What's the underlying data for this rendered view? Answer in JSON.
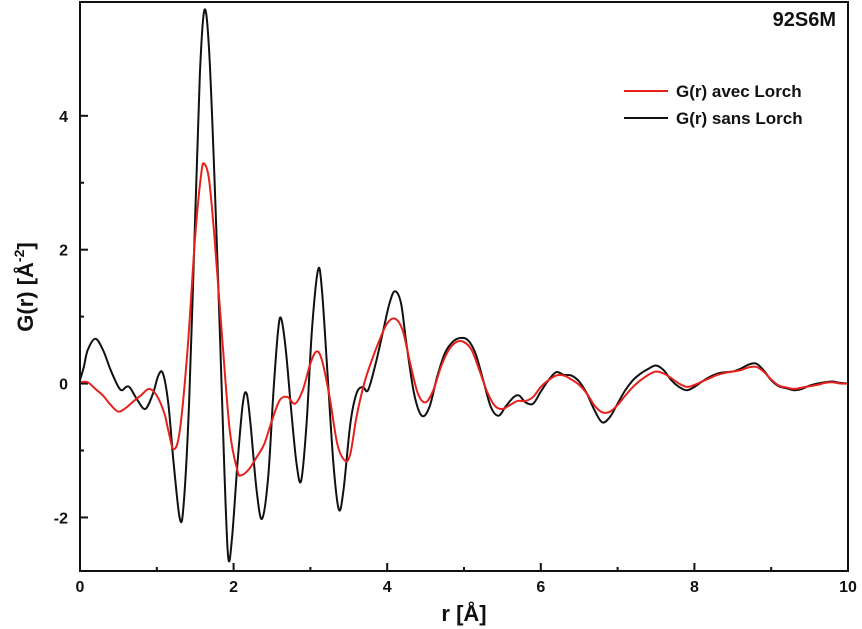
{
  "chart_data": {
    "type": "line",
    "title": "92S6M",
    "xlabel": "r [Å]",
    "ylabel": {
      "main": "G(r) [Å",
      "sup": "-2",
      "end": "]"
    },
    "xlim": [
      0,
      10
    ],
    "ylim": [
      -2.8,
      5.7
    ],
    "xticks": [
      0,
      2,
      4,
      6,
      8,
      10
    ],
    "yticks": [
      -2,
      0,
      2,
      4
    ],
    "grid": false,
    "legend": "top-right",
    "series": [
      {
        "name": "G(r) avec Lorch",
        "color": "#e8201c",
        "points": [
          [
            0,
            0.02
          ],
          [
            0.1,
            0.02
          ],
          [
            0.2,
            -0.08
          ],
          [
            0.3,
            -0.18
          ],
          [
            0.4,
            -0.32
          ],
          [
            0.5,
            -0.42
          ],
          [
            0.6,
            -0.36
          ],
          [
            0.7,
            -0.26
          ],
          [
            0.8,
            -0.17
          ],
          [
            0.9,
            -0.08
          ],
          [
            1.0,
            -0.18
          ],
          [
            1.1,
            -0.45
          ],
          [
            1.15,
            -0.7
          ],
          [
            1.22,
            -0.98
          ],
          [
            1.3,
            -0.7
          ],
          [
            1.4,
            0.5
          ],
          [
            1.5,
            2.2
          ],
          [
            1.58,
            3.15
          ],
          [
            1.62,
            3.28
          ],
          [
            1.68,
            3.05
          ],
          [
            1.75,
            2.2
          ],
          [
            1.85,
            0.7
          ],
          [
            1.95,
            -0.7
          ],
          [
            2.05,
            -1.3
          ],
          [
            2.1,
            -1.37
          ],
          [
            2.2,
            -1.28
          ],
          [
            2.3,
            -1.1
          ],
          [
            2.4,
            -0.9
          ],
          [
            2.5,
            -0.55
          ],
          [
            2.6,
            -0.25
          ],
          [
            2.7,
            -0.2
          ],
          [
            2.8,
            -0.3
          ],
          [
            2.9,
            -0.1
          ],
          [
            3.0,
            0.3
          ],
          [
            3.08,
            0.48
          ],
          [
            3.15,
            0.35
          ],
          [
            3.25,
            -0.2
          ],
          [
            3.35,
            -0.9
          ],
          [
            3.45,
            -1.15
          ],
          [
            3.52,
            -1.05
          ],
          [
            3.6,
            -0.5
          ],
          [
            3.7,
            0.0
          ],
          [
            3.8,
            0.35
          ],
          [
            3.9,
            0.65
          ],
          [
            4.0,
            0.9
          ],
          [
            4.1,
            0.97
          ],
          [
            4.2,
            0.8
          ],
          [
            4.3,
            0.3
          ],
          [
            4.4,
            -0.15
          ],
          [
            4.5,
            -0.28
          ],
          [
            4.6,
            -0.1
          ],
          [
            4.7,
            0.25
          ],
          [
            4.8,
            0.5
          ],
          [
            4.9,
            0.62
          ],
          [
            5.0,
            0.62
          ],
          [
            5.1,
            0.5
          ],
          [
            5.2,
            0.2
          ],
          [
            5.3,
            -0.12
          ],
          [
            5.4,
            -0.33
          ],
          [
            5.5,
            -0.38
          ],
          [
            5.6,
            -0.32
          ],
          [
            5.7,
            -0.26
          ],
          [
            5.8,
            -0.26
          ],
          [
            5.9,
            -0.2
          ],
          [
            6.0,
            -0.05
          ],
          [
            6.1,
            0.05
          ],
          [
            6.2,
            0.12
          ],
          [
            6.3,
            0.12
          ],
          [
            6.4,
            0.06
          ],
          [
            6.5,
            -0.02
          ],
          [
            6.6,
            -0.15
          ],
          [
            6.7,
            -0.33
          ],
          [
            6.8,
            -0.43
          ],
          [
            6.9,
            -0.42
          ],
          [
            7.0,
            -0.32
          ],
          [
            7.1,
            -0.18
          ],
          [
            7.2,
            -0.05
          ],
          [
            7.3,
            0.05
          ],
          [
            7.4,
            0.13
          ],
          [
            7.5,
            0.18
          ],
          [
            7.6,
            0.15
          ],
          [
            7.7,
            0.08
          ],
          [
            7.8,
            0.0
          ],
          [
            7.9,
            -0.05
          ],
          [
            8.0,
            -0.02
          ],
          [
            8.1,
            0.03
          ],
          [
            8.2,
            0.08
          ],
          [
            8.3,
            0.13
          ],
          [
            8.4,
            0.16
          ],
          [
            8.5,
            0.18
          ],
          [
            8.6,
            0.2
          ],
          [
            8.7,
            0.24
          ],
          [
            8.8,
            0.25
          ],
          [
            8.9,
            0.18
          ],
          [
            9.0,
            0.06
          ],
          [
            9.1,
            -0.03
          ],
          [
            9.2,
            -0.06
          ],
          [
            9.3,
            -0.08
          ],
          [
            9.4,
            -0.06
          ],
          [
            9.5,
            -0.04
          ],
          [
            9.6,
            -0.02
          ],
          [
            9.7,
            0.01
          ],
          [
            9.8,
            0.02
          ],
          [
            9.9,
            0.0
          ],
          [
            10.0,
            0.0
          ]
        ]
      },
      {
        "name": "G(r) sans Lorch",
        "color": "#111111",
        "points": [
          [
            0,
            0.05
          ],
          [
            0.05,
            0.25
          ],
          [
            0.1,
            0.5
          ],
          [
            0.2,
            0.67
          ],
          [
            0.3,
            0.5
          ],
          [
            0.4,
            0.2
          ],
          [
            0.5,
            -0.05
          ],
          [
            0.55,
            -0.1
          ],
          [
            0.6,
            -0.05
          ],
          [
            0.65,
            -0.06
          ],
          [
            0.75,
            -0.25
          ],
          [
            0.85,
            -0.38
          ],
          [
            0.95,
            -0.15
          ],
          [
            1.02,
            0.12
          ],
          [
            1.08,
            0.15
          ],
          [
            1.15,
            -0.3
          ],
          [
            1.22,
            -1.2
          ],
          [
            1.3,
            -2.02
          ],
          [
            1.35,
            -1.8
          ],
          [
            1.42,
            -0.3
          ],
          [
            1.5,
            2.5
          ],
          [
            1.56,
            4.6
          ],
          [
            1.62,
            5.58
          ],
          [
            1.68,
            5.0
          ],
          [
            1.75,
            3.1
          ],
          [
            1.82,
            0.8
          ],
          [
            1.88,
            -1.3
          ],
          [
            1.93,
            -2.6
          ],
          [
            1.98,
            -2.3
          ],
          [
            2.05,
            -1.2
          ],
          [
            2.12,
            -0.3
          ],
          [
            2.17,
            -0.15
          ],
          [
            2.22,
            -0.6
          ],
          [
            2.3,
            -1.6
          ],
          [
            2.37,
            -2.02
          ],
          [
            2.45,
            -1.4
          ],
          [
            2.52,
            -0.1
          ],
          [
            2.58,
            0.8
          ],
          [
            2.62,
            0.97
          ],
          [
            2.68,
            0.5
          ],
          [
            2.75,
            -0.4
          ],
          [
            2.82,
            -1.2
          ],
          [
            2.88,
            -1.45
          ],
          [
            2.95,
            -0.6
          ],
          [
            3.02,
            0.8
          ],
          [
            3.1,
            1.7
          ],
          [
            3.15,
            1.4
          ],
          [
            3.22,
            0.2
          ],
          [
            3.3,
            -1.2
          ],
          [
            3.37,
            -1.88
          ],
          [
            3.43,
            -1.6
          ],
          [
            3.52,
            -0.6
          ],
          [
            3.6,
            -0.15
          ],
          [
            3.68,
            -0.05
          ],
          [
            3.75,
            -0.1
          ],
          [
            3.85,
            0.3
          ],
          [
            3.95,
            0.8
          ],
          [
            4.03,
            1.2
          ],
          [
            4.1,
            1.38
          ],
          [
            4.18,
            1.2
          ],
          [
            4.25,
            0.6
          ],
          [
            4.35,
            -0.15
          ],
          [
            4.45,
            -0.48
          ],
          [
            4.55,
            -0.35
          ],
          [
            4.65,
            0.1
          ],
          [
            4.75,
            0.45
          ],
          [
            4.85,
            0.62
          ],
          [
            4.95,
            0.68
          ],
          [
            5.05,
            0.65
          ],
          [
            5.15,
            0.45
          ],
          [
            5.25,
            0.05
          ],
          [
            5.35,
            -0.35
          ],
          [
            5.45,
            -0.48
          ],
          [
            5.55,
            -0.33
          ],
          [
            5.65,
            -0.2
          ],
          [
            5.72,
            -0.18
          ],
          [
            5.8,
            -0.28
          ],
          [
            5.9,
            -0.3
          ],
          [
            6.0,
            -0.12
          ],
          [
            6.1,
            0.05
          ],
          [
            6.2,
            0.17
          ],
          [
            6.3,
            0.13
          ],
          [
            6.4,
            0.12
          ],
          [
            6.5,
            0.03
          ],
          [
            6.6,
            -0.15
          ],
          [
            6.7,
            -0.4
          ],
          [
            6.8,
            -0.58
          ],
          [
            6.9,
            -0.5
          ],
          [
            7.0,
            -0.3
          ],
          [
            7.1,
            -0.1
          ],
          [
            7.2,
            0.05
          ],
          [
            7.3,
            0.15
          ],
          [
            7.4,
            0.22
          ],
          [
            7.5,
            0.27
          ],
          [
            7.6,
            0.2
          ],
          [
            7.7,
            0.05
          ],
          [
            7.8,
            -0.05
          ],
          [
            7.9,
            -0.1
          ],
          [
            8.0,
            -0.05
          ],
          [
            8.1,
            0.03
          ],
          [
            8.2,
            0.1
          ],
          [
            8.3,
            0.15
          ],
          [
            8.4,
            0.17
          ],
          [
            8.5,
            0.18
          ],
          [
            8.6,
            0.22
          ],
          [
            8.7,
            0.28
          ],
          [
            8.8,
            0.3
          ],
          [
            8.9,
            0.2
          ],
          [
            9.0,
            0.05
          ],
          [
            9.1,
            -0.04
          ],
          [
            9.2,
            -0.07
          ],
          [
            9.3,
            -0.1
          ],
          [
            9.4,
            -0.08
          ],
          [
            9.5,
            -0.03
          ],
          [
            9.6,
            0.0
          ],
          [
            9.7,
            0.02
          ],
          [
            9.8,
            0.03
          ],
          [
            9.9,
            0.01
          ],
          [
            10.0,
            0.0
          ]
        ]
      }
    ]
  }
}
